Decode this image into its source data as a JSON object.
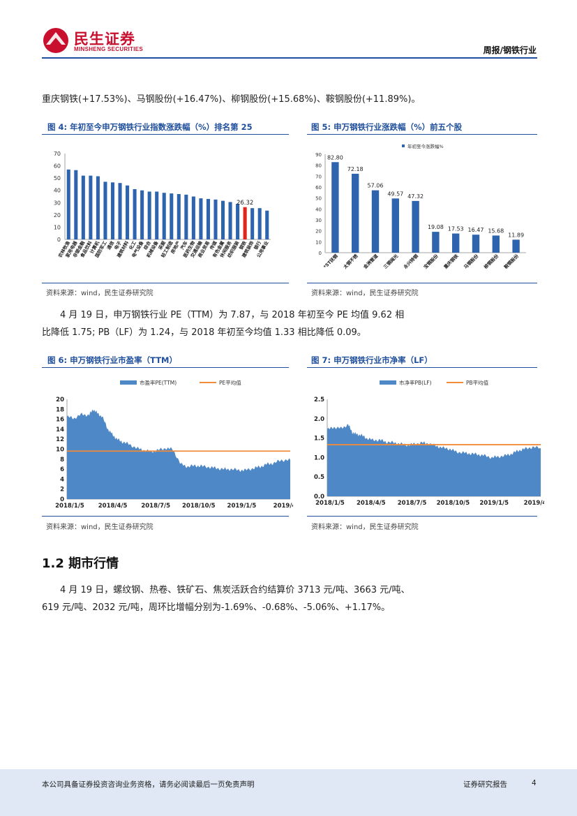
{
  "header": {
    "brand_cn": "民生证券",
    "brand_en": "MINSHENG SECURITIES",
    "report_tag": "周报/钢铁行业"
  },
  "paragraphs": {
    "p1": "重庆钢铁(+17.53%)、马钢股份(+16.47%)、柳钢股份(+15.68%)、鞍钢股份(+11.89%)。",
    "p2_line1": "4 月 19 日，申万钢铁行业 PE（TTM）为 7.87，与 2018 年初至今 PE 均值 9.62 相",
    "p2_line2": "比降低 1.75; PB（LF）为 1.24，与 2018 年初至今均值 1.33 相比降低 0.09。",
    "p3_line1": "4 月 19 日，螺纹钢、热卷、铁矿石、焦炭活跃合约结算价 3713 元/吨、3663 元/吨、",
    "p3_line2": "619 元/吨、2032 元/吨，周环比增幅分别为-1.69%、-0.68%、-5.06%、+1.17%。"
  },
  "section_title": "1.2 期市行情",
  "figures": {
    "fig4": {
      "title": "图 4:  年初至今申万钢铁行业指数涨跌幅（%）排名第 25",
      "source": "资料来源：wind，民生证券研究院"
    },
    "fig5": {
      "title": "图 5:  申万钢铁行业涨跌幅（%）前五个股",
      "source": "资料来源：wind，民生证券研究院"
    },
    "fig6": {
      "title": "图 6:  申万钢铁行业市盈率（TTM）",
      "source": "资料来源：wind，民生证券研究院"
    },
    "fig7": {
      "title": "图 7:  申万钢铁行业市净率（LF）",
      "source": "资料来源：wind，民生证券研究院"
    }
  },
  "footer": {
    "disclaimer": "本公司具备证券投资咨询业务资格，请务必阅读最后一页免责声明",
    "report_type": "证券研究报告",
    "page": "4"
  },
  "colors": {
    "bar": "#2e64ad",
    "highlight": "#e0251b",
    "area": "#4f88c6",
    "mean_line": "#f08b3a",
    "title_blue": "#1f4f9c",
    "brand_red": "#c8102e"
  },
  "chart_data": [
    {
      "id": "fig4",
      "type": "bar",
      "categories": [
        "农林牧渔",
        "家用电器",
        "非银金融",
        "食品饮料",
        "计算机",
        "国防军工",
        "通信",
        "电子",
        "建筑材料",
        "化工",
        "电气设备",
        "综合",
        "机械设备",
        "采掘",
        "轻工制造",
        "房地产",
        "汽车",
        "医药生物",
        "交通运输",
        "商业贸易",
        "传媒",
        "有色金属",
        "休闲服务",
        "纺织服装",
        "钢铁",
        "建筑装饰",
        "银行",
        "公用事业"
      ],
      "values": [
        57,
        56.5,
        52,
        52,
        51.5,
        47,
        46.5,
        46,
        44,
        41,
        40,
        39,
        39,
        38,
        37.5,
        37,
        36.5,
        35,
        33.5,
        33,
        32.5,
        31.5,
        30.5,
        29,
        26.32,
        25.5,
        25.5,
        23.5
      ],
      "highlight_index": 24,
      "data_labels": {
        "24": "26.32"
      },
      "yticks": [
        "0",
        "10",
        "20",
        "30",
        "40",
        "50",
        "60",
        "70"
      ],
      "ylim": [
        0,
        70
      ],
      "grid": false
    },
    {
      "id": "fig5",
      "type": "bar",
      "legend": "年初至今涨跌幅%",
      "categories": [
        "*ST抚钢",
        "太钢不锈",
        "金洲管道",
        "三钢闽光",
        "永兴特钢",
        "宝钢股份",
        "重庆钢铁",
        "马钢股份",
        "柳钢股份",
        "鞍钢股份"
      ],
      "values": [
        82.8,
        72.18,
        57.06,
        49.57,
        47.32,
        19.08,
        17.53,
        16.47,
        15.68,
        11.89
      ],
      "labels": [
        "82.80",
        "72.18",
        "57.06",
        "49.57",
        "47.32",
        "19.08",
        "17.53",
        "16.47",
        "15.68",
        "11.89"
      ],
      "yticks": [
        "0",
        "10",
        "20",
        "30",
        "40",
        "50",
        "60",
        "70",
        "80",
        "90"
      ],
      "ylim": [
        0,
        90
      ],
      "grid": false
    },
    {
      "id": "fig6",
      "type": "area",
      "series": [
        {
          "name": "市盈率PE(TTM)",
          "kind": "area",
          "x": [
            "2018-01-05",
            "2018-01-20",
            "2018-02-05",
            "2018-02-20",
            "2018-03-01",
            "2018-03-10",
            "2018-03-20",
            "2018-04-01",
            "2018-04-10",
            "2018-04-20",
            "2018-05-01",
            "2018-05-15",
            "2018-06-01",
            "2018-06-15",
            "2018-07-01",
            "2018-07-15",
            "2018-08-01",
            "2018-08-15",
            "2018-09-01",
            "2018-09-15",
            "2018-10-01",
            "2018-10-15",
            "2018-11-01",
            "2018-11-15",
            "2018-12-01",
            "2018-12-15",
            "2019-01-01",
            "2019-01-15",
            "2019-02-01",
            "2019-02-15",
            "2019-03-01",
            "2019-03-15",
            "2019-04-01",
            "2019-04-19"
          ],
          "values": [
            16.5,
            16.2,
            17,
            16.8,
            18,
            17.2,
            16.5,
            14,
            13,
            12,
            11.5,
            11,
            10.2,
            9.8,
            9.5,
            9.8,
            10.2,
            10,
            7,
            6.5,
            6.7,
            6.6,
            6.4,
            6.2,
            6,
            6,
            5.8,
            5.8,
            6.2,
            6.5,
            7,
            7.2,
            7.8,
            7.87
          ]
        },
        {
          "name": "PE平均值",
          "kind": "line",
          "values": [
            9.62
          ]
        }
      ],
      "xticks": [
        "2018/1/5",
        "2018/4/5",
        "2018/7/5",
        "2018/10/5",
        "2019/1/5",
        "2019/4"
      ],
      "yticks": [
        "0",
        "2",
        "4",
        "6",
        "8",
        "10",
        "12",
        "14",
        "16",
        "18",
        "20"
      ],
      "ylim": [
        0,
        20
      ]
    },
    {
      "id": "fig7",
      "type": "area",
      "series": [
        {
          "name": "市净率PB(LF)",
          "kind": "area",
          "x": [
            "2018-01-05",
            "2018-01-20",
            "2018-02-05",
            "2018-02-20",
            "2018-03-01",
            "2018-03-10",
            "2018-03-20",
            "2018-04-01",
            "2018-04-15",
            "2018-05-01",
            "2018-05-15",
            "2018-06-01",
            "2018-06-15",
            "2018-07-01",
            "2018-07-15",
            "2018-08-01",
            "2018-08-15",
            "2018-09-01",
            "2018-09-15",
            "2018-10-01",
            "2018-10-15",
            "2018-11-01",
            "2018-11-15",
            "2018-12-01",
            "2018-12-15",
            "2019-01-01",
            "2019-01-15",
            "2019-02-01",
            "2019-02-15",
            "2019-03-01",
            "2019-03-15",
            "2019-04-01",
            "2019-04-19"
          ],
          "values": [
            1.72,
            1.78,
            1.75,
            1.85,
            1.65,
            1.6,
            1.58,
            1.5,
            1.45,
            1.45,
            1.4,
            1.38,
            1.35,
            1.32,
            1.35,
            1.38,
            1.36,
            1.3,
            1.25,
            1.22,
            1.15,
            1.12,
            1.1,
            1.08,
            1.05,
            1.0,
            1.02,
            1.05,
            1.1,
            1.18,
            1.22,
            1.27,
            1.24
          ]
        },
        {
          "name": "PB平均值",
          "kind": "line",
          "values": [
            1.33
          ]
        }
      ],
      "xticks": [
        "2018/1/5",
        "2018/4/5",
        "2018/7/5",
        "2018/10/5",
        "2019/1/5",
        "2019/4"
      ],
      "yticks": [
        "0.0",
        "0.5",
        "1.0",
        "1.5",
        "2.0",
        "2.5"
      ],
      "ylim": [
        0,
        2.5
      ]
    }
  ]
}
